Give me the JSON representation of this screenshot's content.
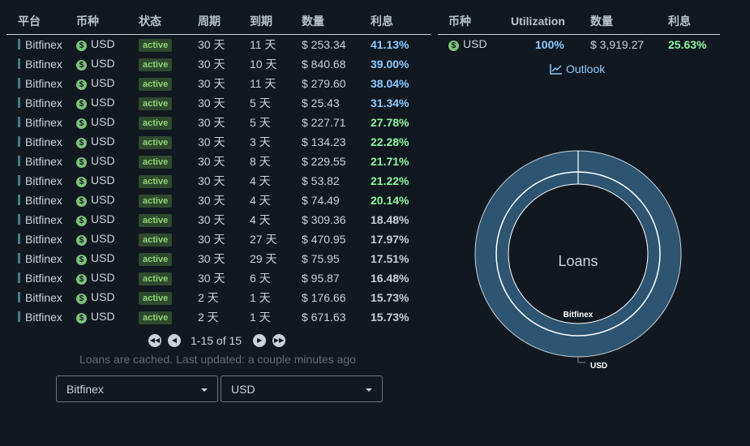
{
  "loans": {
    "headers": [
      "平台",
      "币种",
      "状态",
      "周期",
      "到期",
      "数量",
      "利息"
    ],
    "rows": [
      {
        "platform": "Bitfinex",
        "currency": "USD",
        "status": "active",
        "period": "30 天",
        "due": "11 天",
        "amount": "$ 253.34",
        "rate": "41.13%"
      },
      {
        "platform": "Bitfinex",
        "currency": "USD",
        "status": "active",
        "period": "30 天",
        "due": "10 天",
        "amount": "$ 840.68",
        "rate": "39.00%"
      },
      {
        "platform": "Bitfinex",
        "currency": "USD",
        "status": "active",
        "period": "30 天",
        "due": "11 天",
        "amount": "$ 279.60",
        "rate": "38.04%"
      },
      {
        "platform": "Bitfinex",
        "currency": "USD",
        "status": "active",
        "period": "30 天",
        "due": "5 天",
        "amount": "$ 25.43",
        "rate": "31.34%"
      },
      {
        "platform": "Bitfinex",
        "currency": "USD",
        "status": "active",
        "period": "30 天",
        "due": "5 天",
        "amount": "$ 227.71",
        "rate": "27.78%"
      },
      {
        "platform": "Bitfinex",
        "currency": "USD",
        "status": "active",
        "period": "30 天",
        "due": "3 天",
        "amount": "$ 134.23",
        "rate": "22.28%"
      },
      {
        "platform": "Bitfinex",
        "currency": "USD",
        "status": "active",
        "period": "30 天",
        "due": "8 天",
        "amount": "$ 229.55",
        "rate": "21.71%"
      },
      {
        "platform": "Bitfinex",
        "currency": "USD",
        "status": "active",
        "period": "30 天",
        "due": "4 天",
        "amount": "$ 53.82",
        "rate": "21.22%"
      },
      {
        "platform": "Bitfinex",
        "currency": "USD",
        "status": "active",
        "period": "30 天",
        "due": "4 天",
        "amount": "$ 74.49",
        "rate": "20.14%"
      },
      {
        "platform": "Bitfinex",
        "currency": "USD",
        "status": "active",
        "period": "30 天",
        "due": "4 天",
        "amount": "$ 309.36",
        "rate": "18.48%"
      },
      {
        "platform": "Bitfinex",
        "currency": "USD",
        "status": "active",
        "period": "30 天",
        "due": "27 天",
        "amount": "$ 470.95",
        "rate": "17.97%"
      },
      {
        "platform": "Bitfinex",
        "currency": "USD",
        "status": "active",
        "period": "30 天",
        "due": "29 天",
        "amount": "$ 75.95",
        "rate": "17.51%"
      },
      {
        "platform": "Bitfinex",
        "currency": "USD",
        "status": "active",
        "period": "30 天",
        "due": "6 天",
        "amount": "$ 95.87",
        "rate": "16.48%"
      },
      {
        "platform": "Bitfinex",
        "currency": "USD",
        "status": "active",
        "period": "2 天",
        "due": "1 天",
        "amount": "$ 176.66",
        "rate": "15.73%"
      },
      {
        "platform": "Bitfinex",
        "currency": "USD",
        "status": "active",
        "period": "2 天",
        "due": "1 天",
        "amount": "$ 671.63",
        "rate": "15.73%"
      }
    ]
  },
  "pagination": {
    "info": "1-15 of 15"
  },
  "cache_note": "Loans are cached. Last updated: a couple minutes ago",
  "filters": {
    "platform": "Bitfinex",
    "currency": "USD"
  },
  "summary": {
    "headers": [
      "币种",
      "Utilization",
      "数量",
      "利息"
    ],
    "row": {
      "currency": "USD",
      "utilization": "100%",
      "amount": "$ 3,919.27",
      "rate": "25.63%"
    }
  },
  "outlook_label": "Outlook",
  "chart_data": {
    "type": "pie",
    "title": "Loans",
    "inner_ring": [
      {
        "label": "Bitfinex",
        "share": 1.0
      }
    ],
    "outer_ring": [
      {
        "label": "USD",
        "share": 1.0
      }
    ]
  },
  "colors": {
    "background": "#111820",
    "accent": "#8ecbff",
    "ring": "#2d5470",
    "positive": "#8ef5a0",
    "badge": "#2e4a2e"
  },
  "icons": {
    "currency": "dollar-coin-icon",
    "outlook": "line-chart-icon"
  }
}
